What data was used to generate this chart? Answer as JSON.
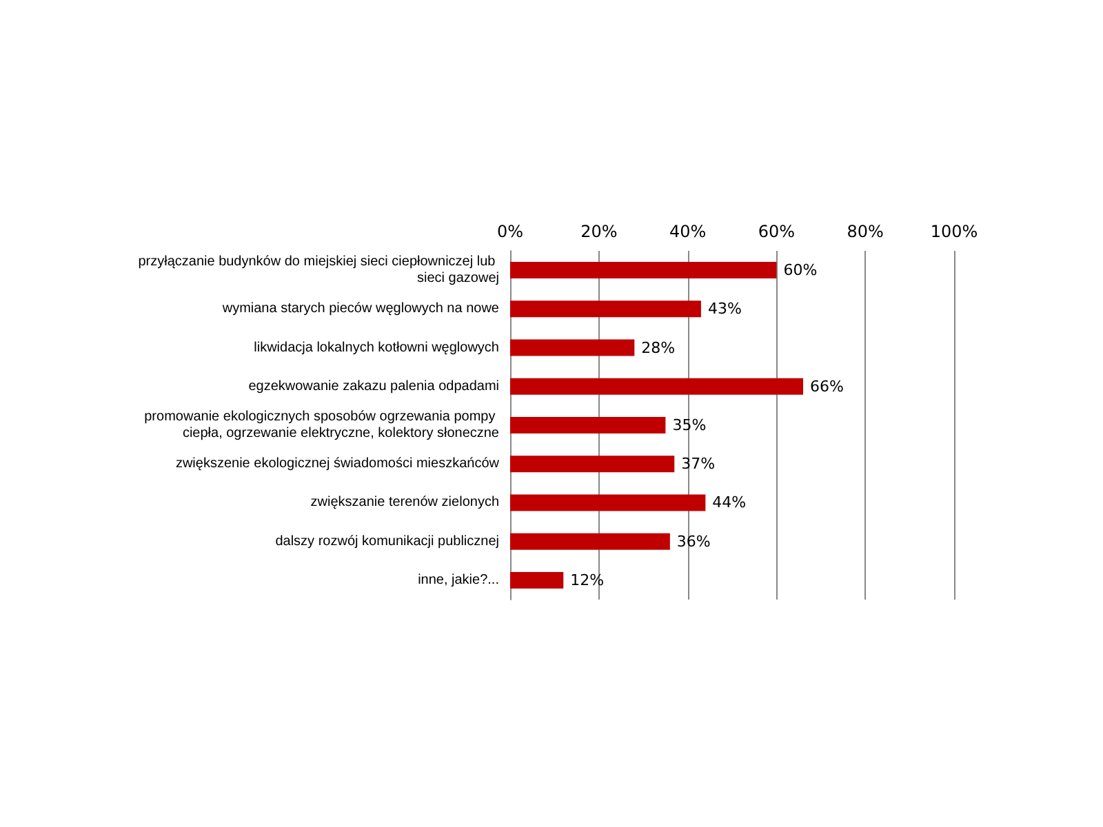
{
  "chart_data": {
    "type": "bar",
    "orientation": "horizontal",
    "categories": [
      "przyłączanie budynków do miejskiej sieci ciepłowniczej lub sieci gazowej",
      "wymiana starych pieców węglowych na nowe",
      "likwidacja lokalnych kotłowni węglowych",
      "egzekwowanie zakazu palenia odpadami",
      "promowanie ekologicznych sposobów ogrzewania pompy ciepła, ogrzewanie elektryczne, kolektory słoneczne",
      "zwiększenie ekologicznej świadomości mieszkańców",
      "zwiększanie terenów zielonych",
      "dalszy rozwój komunikacji publicznej",
      "inne, jakie?..."
    ],
    "values": [
      60,
      43,
      28,
      66,
      35,
      37,
      44,
      36,
      12
    ],
    "value_labels": [
      "60%",
      "43%",
      "28%",
      "66%",
      "35%",
      "37%",
      "44%",
      "36%",
      "12%"
    ],
    "color": "#c00000",
    "xlim": [
      0,
      100
    ],
    "xticks": [
      {
        "value": 0,
        "label": "0%"
      },
      {
        "value": 20,
        "label": "20%"
      },
      {
        "value": 40,
        "label": "40%"
      },
      {
        "value": 60,
        "label": "60%"
      },
      {
        "value": 80,
        "label": "80%"
      },
      {
        "value": 100,
        "label": "100%"
      }
    ],
    "grid": "x"
  }
}
